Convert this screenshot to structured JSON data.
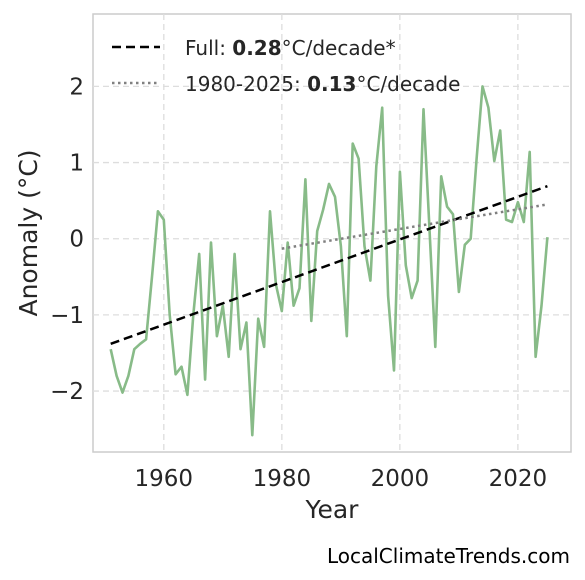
{
  "chart_data": {
    "type": "line",
    "xlabel": "Year",
    "ylabel": "Anomaly (°C)",
    "xlim": [
      1948,
      2029
    ],
    "ylim": [
      -2.8,
      2.95
    ],
    "x_ticks": [
      "1960",
      "1980",
      "2000",
      "2020"
    ],
    "y_ticks": [
      "−2",
      "−1",
      "0",
      "1",
      "2"
    ],
    "grid": true,
    "legend_position": "top-left",
    "colors": {
      "data": "#88bb88",
      "full_trend": "#000000",
      "recent_trend": "#808080"
    },
    "series": [
      {
        "x": [
          1951,
          1952,
          1953,
          1954,
          1955,
          1956,
          1957,
          1958,
          1959,
          1960,
          1961,
          1962,
          1963,
          1964,
          1965,
          1966,
          1967,
          1968,
          1969,
          1970,
          1971,
          1972,
          1973,
          1974,
          1975,
          1976,
          1977,
          1978,
          1979,
          1980,
          1981,
          1982,
          1983,
          1984,
          1985,
          1986,
          1987,
          1988,
          1989,
          1990,
          1991,
          1992,
          1993,
          1994,
          1995,
          1996,
          1997,
          1998,
          1999,
          2000,
          2001,
          2002,
          2003,
          2004,
          2005,
          2006,
          2007,
          2008,
          2009,
          2010,
          2011,
          2012,
          2013,
          2014,
          2015,
          2016,
          2017,
          2018,
          2019,
          2020,
          2021,
          2022,
          2023,
          2024,
          2025
        ],
        "values": [
          -1.45,
          -1.8,
          -2.02,
          -1.8,
          -1.45,
          -1.38,
          -1.32,
          -0.5,
          0.36,
          0.25,
          -1.0,
          -1.78,
          -1.68,
          -2.05,
          -1.0,
          -0.2,
          -1.85,
          -0.05,
          -1.28,
          -0.88,
          -1.55,
          -0.2,
          -1.45,
          -1.1,
          -2.58,
          -1.05,
          -1.42,
          0.36,
          -0.6,
          -0.95,
          -0.05,
          -0.88,
          -0.65,
          0.78,
          -1.08,
          0.1,
          0.38,
          0.72,
          0.55,
          -0.1,
          -1.28,
          1.25,
          1.05,
          -0.1,
          -0.55,
          0.95,
          1.72,
          -0.75,
          -1.73,
          0.88,
          -0.35,
          -0.78,
          -0.55,
          1.7,
          0.15,
          -1.42,
          0.82,
          0.42,
          0.32,
          -0.7,
          -0.08,
          0.0,
          1.05,
          2.0,
          1.72,
          1.02,
          1.42,
          0.25,
          0.22,
          0.48,
          0.22,
          1.14,
          -1.55,
          -0.88,
          0.02
        ]
      }
    ],
    "trends": [
      {
        "style": "dashed",
        "rate": "0.28",
        "x": [
          1951,
          2025
        ],
        "y": [
          -1.38,
          0.69
        ]
      },
      {
        "style": "dotted",
        "rate": "0.13",
        "x": [
          1980,
          2025
        ],
        "y": [
          -0.13,
          0.45
        ]
      }
    ]
  },
  "legend": {
    "full_prefix": "Full: ",
    "full_rate": "0.28",
    "full_suffix": "°C/decade*",
    "recent_prefix": "1980-2025: ",
    "recent_rate": "0.13",
    "recent_suffix": "°C/decade"
  },
  "source_text": "LocalClimateTrends.com"
}
